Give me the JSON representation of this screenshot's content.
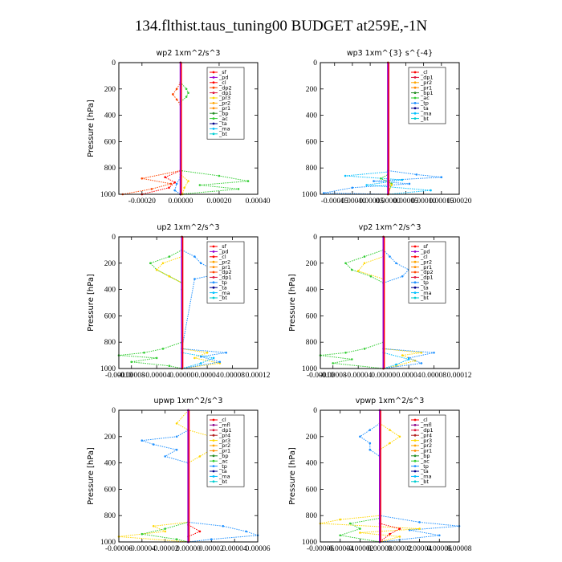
{
  "figure_title": "134.flthist.taus_tuning00  BUDGET at259E,-1N",
  "chart_data": [
    {
      "type": "line",
      "title": "wp2   1xm^2/s^3",
      "ylabel": "Pressure [hPa]",
      "ylim": [
        1000,
        0
      ],
      "yticks": [
        "0",
        "200",
        "400",
        "600",
        "800",
        "1000"
      ],
      "xlim": [
        -0.00032,
        0.0004
      ],
      "xticks": [
        {
          "v": -0.0002,
          "t": "-0.00020"
        },
        {
          "v": 0.0,
          "t": "0.00000"
        },
        {
          "v": 0.0002,
          "t": "0.00020"
        },
        {
          "v": 0.0004,
          "t": "0.00040"
        }
      ],
      "legend": [
        "_sf",
        "_pd",
        "_cl",
        "_dp2",
        "_dp1",
        "_pr3",
        "_pr2",
        "_pr1",
        "_bp",
        "_ac",
        "_ta",
        "_ma",
        "_bt"
      ],
      "series": [
        {
          "color": "#32cd32",
          "p": [
            0,
            150,
            200,
            230,
            260,
            300,
            820,
            860,
            900,
            930,
            960,
            1000
          ],
          "x": [
            0.0,
            0.0,
            3e-05,
            4e-05,
            3e-05,
            0.0,
            0.0,
            0.0002,
            0.00035,
            0.0001,
            0.0003,
            0.0
          ]
        },
        {
          "color": "#ff4500",
          "p": [
            0,
            150,
            200,
            240,
            280,
            320,
            820,
            880,
            920,
            960,
            1000
          ],
          "x": [
            0.0,
            0.0,
            -2e-05,
            -4e-05,
            -2e-05,
            0.0,
            0.0,
            -0.0002,
            -5e-05,
            -0.00015,
            -0.0003
          ]
        },
        {
          "color": "#ff0000",
          "p": [
            0,
            820,
            870,
            910,
            950,
            1000
          ],
          "x": [
            0.0,
            0.0,
            -8e-05,
            -3e-05,
            -6e-05,
            -0.0002
          ]
        },
        {
          "color": "#ffd700",
          "p": [
            0,
            850,
            900,
            950,
            1000
          ],
          "x": [
            0.0,
            0.0,
            4e-05,
            2e-05,
            1e-05
          ]
        },
        {
          "color": "#1e90ff",
          "p": [
            0,
            870,
            920,
            970,
            1000
          ],
          "x": [
            0.0,
            0.0,
            -2e-05,
            -3e-05,
            0.0
          ]
        },
        {
          "color": "#9400d3",
          "p": [
            0,
            1000
          ],
          "x": [
            0.0,
            0.0
          ]
        },
        {
          "color": "#8b0000",
          "p": [
            0,
            1000
          ],
          "x": [
            0.0,
            0.0
          ]
        }
      ]
    },
    {
      "type": "line",
      "title": "wp3   1xm^{3} s^{-4}",
      "ylabel": "",
      "ylim": [
        1000,
        0
      ],
      "yticks": [
        "0",
        "200",
        "400",
        "600",
        "800",
        "1000"
      ],
      "xlim": [
        -0.00019,
        0.0002
      ],
      "xticks": [
        {
          "v": -0.00015,
          "t": "-0.00015"
        },
        {
          "v": -0.0001,
          "t": "-0.00010"
        },
        {
          "v": -5e-05,
          "t": "-0.00005"
        },
        {
          "v": 0.0,
          "t": "0.00000"
        },
        {
          "v": 5e-05,
          "t": "0.00005"
        },
        {
          "v": 0.0001,
          "t": "0.00010"
        },
        {
          "v": 0.00015,
          "t": "0.00015"
        },
        {
          "v": 0.0002,
          "t": "0.00020"
        }
      ],
      "legend": [
        "_cl",
        "_dp1",
        "_pr2",
        "_pr1",
        "_bp1",
        "_ac",
        "_tp",
        "_ta",
        "_ma",
        "_bt"
      ],
      "series": [
        {
          "color": "#1e90ff",
          "p": [
            0,
            820,
            850,
            870,
            900,
            920,
            950,
            990,
            1000
          ],
          "x": [
            0.0,
            0.0,
            8e-05,
            0.00015,
            -4e-05,
            6e-05,
            -0.0001,
            -0.00018,
            0.0
          ]
        },
        {
          "color": "#00bfff",
          "p": [
            0,
            830,
            860,
            890,
            930,
            970,
            1000
          ],
          "x": [
            0.0,
            0.0,
            -0.00012,
            4e-05,
            -6e-05,
            0.00012,
            0.0
          ]
        },
        {
          "color": "#32cd32",
          "p": [
            0,
            850,
            880,
            920,
            1000
          ],
          "x": [
            0.0,
            0.0,
            -2e-05,
            1e-05,
            0.0
          ]
        },
        {
          "color": "#ffd700",
          "p": [
            0,
            880,
            930,
            1000
          ],
          "x": [
            0.0,
            0.0,
            1e-05,
            0.0
          ]
        },
        {
          "color": "#ff0000",
          "p": [
            0,
            1000
          ],
          "x": [
            0.0,
            0.0
          ]
        }
      ]
    },
    {
      "type": "line",
      "title": "up2   1xm^2/s^3",
      "ylabel": "Pressure [hPa]",
      "ylim": [
        1000,
        0
      ],
      "yticks": [
        "0",
        "200",
        "400",
        "600",
        "800",
        "1000"
      ],
      "xlim": [
        -0.0001,
        0.00012
      ],
      "xticks": [
        {
          "v": -0.0001,
          "t": "-0.00010"
        },
        {
          "v": -8e-05,
          "t": "-0.00008"
        },
        {
          "v": -4e-05,
          "t": "-0.00004"
        },
        {
          "v": 0.0,
          "t": "0.00000"
        },
        {
          "v": 4e-05,
          "t": "0.00004"
        },
        {
          "v": 8e-05,
          "t": "0.00008"
        },
        {
          "v": 0.00012,
          "t": "0.00012"
        }
      ],
      "legend": [
        "_sf",
        "_pd",
        "_cl",
        "_pr2",
        "_pr1",
        "_dp2",
        "_dp1",
        "_tp",
        "_ta",
        "_ma",
        "_bt"
      ],
      "series": [
        {
          "color": "#32cd32",
          "p": [
            0,
            100,
            150,
            200,
            250,
            300,
            350,
            400,
            800,
            850,
            880,
            900,
            920,
            950,
            980,
            1000
          ],
          "x": [
            0.0,
            0.0,
            -2e-05,
            -5e-05,
            -4e-05,
            -2e-05,
            0.0,
            0.0,
            0.0,
            -3e-05,
            -6e-05,
            -0.0001,
            -4e-05,
            -8e-05,
            -2e-05,
            0.0
          ]
        },
        {
          "color": "#ffd700",
          "p": [
            0,
            150,
            200,
            250,
            300,
            350,
            850,
            880,
            920,
            960,
            1000
          ],
          "x": [
            0.0,
            0.0,
            -3e-05,
            -4e-05,
            -2e-05,
            0.0,
            0.0,
            4e-05,
            2e-05,
            6e-05,
            0.0
          ]
        },
        {
          "color": "#1e90ff",
          "p": [
            0,
            100,
            150,
            200,
            250,
            280,
            320,
            850,
            880,
            910,
            950,
            1000
          ],
          "x": [
            0.0,
            0.0,
            2e-05,
            3e-05,
            5e-05,
            6e-05,
            2e-05,
            0.0,
            7e-05,
            3e-05,
            6e-05,
            0.0
          ]
        },
        {
          "color": "#00bfff",
          "p": [
            0,
            880,
            920,
            960,
            1000
          ],
          "x": [
            0.0,
            0.0,
            5e-05,
            3e-05,
            0.0
          ]
        },
        {
          "color": "#ff0000",
          "p": [
            0,
            1000
          ],
          "x": [
            0.0,
            0.0
          ]
        }
      ]
    },
    {
      "type": "line",
      "title": "vp2   1xm^2/s^3",
      "ylabel": "Pressure [hPa]",
      "ylim": [
        1000,
        0
      ],
      "yticks": [
        "0",
        "200",
        "400",
        "600",
        "800",
        "1000"
      ],
      "xlim": [
        -0.0001,
        0.00012
      ],
      "xticks": [
        {
          "v": -0.0001,
          "t": "-0.00010"
        },
        {
          "v": -8e-05,
          "t": "-0.00008"
        },
        {
          "v": -4e-05,
          "t": "-0.00004"
        },
        {
          "v": 0.0,
          "t": "0.00000"
        },
        {
          "v": 4e-05,
          "t": "0.00004"
        },
        {
          "v": 8e-05,
          "t": "0.00008"
        },
        {
          "v": 0.00012,
          "t": "0.00012"
        }
      ],
      "legend": [
        "_sf",
        "_pd",
        "_cl",
        "_pr2",
        "_pr1",
        "_dp2",
        "_dp1",
        "_tp",
        "_ta",
        "_ma",
        "_bt"
      ],
      "series": [
        {
          "color": "#32cd32",
          "p": [
            0,
            100,
            150,
            200,
            250,
            300,
            350,
            800,
            850,
            880,
            900,
            930,
            960,
            1000
          ],
          "x": [
            0.0,
            0.0,
            -3e-05,
            -6e-05,
            -5e-05,
            -2e-05,
            0.0,
            0.0,
            -3e-05,
            -6e-05,
            -0.0001,
            -5e-05,
            -8e-05,
            0.0
          ]
        },
        {
          "color": "#ffd700",
          "p": [
            0,
            150,
            200,
            260,
            320,
            850,
            880,
            900,
            940,
            980,
            1000
          ],
          "x": [
            0.0,
            0.0,
            -3e-05,
            -4e-05,
            0.0,
            0.0,
            6e-05,
            3e-05,
            5e-05,
            2e-05,
            0.0
          ]
        },
        {
          "color": "#1e90ff",
          "p": [
            0,
            100,
            150,
            200,
            250,
            300,
            350,
            850,
            880,
            920,
            960,
            1000
          ],
          "x": [
            0.0,
            0.0,
            1e-05,
            2e-05,
            4e-05,
            3e-05,
            0.0,
            0.0,
            8e-05,
            4e-05,
            6e-05,
            0.0
          ]
        },
        {
          "color": "#00bfff",
          "p": [
            0,
            880,
            930,
            970,
            1000
          ],
          "x": [
            0.0,
            0.0,
            4e-05,
            2e-05,
            0.0
          ]
        },
        {
          "color": "#ff0000",
          "p": [
            0,
            1000
          ],
          "x": [
            0.0,
            0.0
          ]
        }
      ]
    },
    {
      "type": "line",
      "title": "upwp   1xm^2/s^3",
      "ylabel": "Pressure [hPa]",
      "ylim": [
        1000,
        0
      ],
      "yticks": [
        "0",
        "200",
        "400",
        "600",
        "800",
        "1000"
      ],
      "xlim": [
        -6e-05,
        6e-05
      ],
      "xticks": [
        {
          "v": -6e-05,
          "t": "-0.00006"
        },
        {
          "v": -4e-05,
          "t": "-0.00004"
        },
        {
          "v": -2e-05,
          "t": "-0.00002"
        },
        {
          "v": 0.0,
          "t": "0.00000"
        },
        {
          "v": 2e-05,
          "t": "0.00002"
        },
        {
          "v": 4e-05,
          "t": "0.00004"
        },
        {
          "v": 6e-05,
          "t": "0.00006"
        }
      ],
      "legend": [
        "_cl",
        "_mfl",
        "_dp1",
        "_pr4",
        "_pr3",
        "_pr2",
        "_pr1",
        "_bp",
        "_ac",
        "_tp",
        "_ta",
        "_ma",
        "_bt"
      ],
      "series": [
        {
          "color": "#ffd700",
          "p": [
            0,
            100,
            150,
            200,
            250,
            300,
            350,
            400,
            850,
            880,
            920,
            960,
            1000
          ],
          "x": [
            0.0,
            -1e-05,
            0.0,
            2e-05,
            3e-05,
            2e-05,
            1e-05,
            0.0,
            0.0,
            -3e-05,
            -2e-05,
            -6e-05,
            0.0
          ]
        },
        {
          "color": "#1e90ff",
          "p": [
            0,
            150,
            200,
            230,
            260,
            300,
            350,
            400,
            850,
            880,
            920,
            950,
            980,
            1000
          ],
          "x": [
            0.0,
            0.0,
            -1e-05,
            -4e-05,
            -3e-05,
            -1e-05,
            -2e-05,
            0.0,
            0.0,
            3e-05,
            5e-05,
            6e-05,
            2e-05,
            0.0
          ]
        },
        {
          "color": "#32cd32",
          "p": [
            0,
            850,
            900,
            940,
            980,
            1000
          ],
          "x": [
            0.0,
            0.0,
            -2e-05,
            -4e-05,
            -1e-05,
            0.0
          ]
        },
        {
          "color": "#ff0000",
          "p": [
            0,
            870,
            920,
            960,
            1000
          ],
          "x": [
            0.0,
            0.0,
            1e-05,
            0.0,
            0.0
          ]
        },
        {
          "color": "#9400d3",
          "p": [
            0,
            1000
          ],
          "x": [
            0.0,
            0.0
          ]
        }
      ]
    },
    {
      "type": "line",
      "title": "vpwp   1xm^2/s^3",
      "ylabel": "Pressure [hPa]",
      "ylim": [
        1000,
        0
      ],
      "yticks": [
        "0",
        "200",
        "400",
        "600",
        "800",
        "1000"
      ],
      "xlim": [
        -6e-05,
        8e-05
      ],
      "xticks": [
        {
          "v": -6e-05,
          "t": "-0.00006"
        },
        {
          "v": -4e-05,
          "t": "-0.00004"
        },
        {
          "v": -2e-05,
          "t": "-0.00002"
        },
        {
          "v": 0.0,
          "t": "0.00000"
        },
        {
          "v": 2e-05,
          "t": "0.00002"
        },
        {
          "v": 4e-05,
          "t": "0.00004"
        },
        {
          "v": 6e-05,
          "t": "0.00006"
        },
        {
          "v": 8e-05,
          "t": "0.00008"
        }
      ],
      "legend": [
        "_cl",
        "_mfl",
        "_dp1",
        "_pr4",
        "_pr3",
        "_pr2",
        "_pr1",
        "_bp",
        "_ac",
        "_tp",
        "_ta",
        "_ma",
        "_bt"
      ],
      "series": [
        {
          "color": "#1e90ff",
          "p": [
            0,
            100,
            150,
            200,
            250,
            300,
            350,
            800,
            850,
            880,
            910,
            950,
            1000
          ],
          "x": [
            0.0,
            0.0,
            -1e-05,
            -2e-05,
            -1e-05,
            -1e-05,
            0.0,
            0.0,
            4e-05,
            8e-05,
            3e-05,
            6e-05,
            0.0
          ]
        },
        {
          "color": "#ffd700",
          "p": [
            0,
            100,
            150,
            200,
            250,
            300,
            350,
            800,
            830,
            860,
            900,
            930,
            960,
            1000
          ],
          "x": [
            0.0,
            0.0,
            1e-05,
            2e-05,
            1e-05,
            0.0,
            0.0,
            0.0,
            -4e-05,
            -6e-05,
            4e-05,
            -2e-05,
            2e-05,
            0.0
          ]
        },
        {
          "color": "#32cd32",
          "p": [
            0,
            820,
            860,
            900,
            950,
            1000
          ],
          "x": [
            0.0,
            0.0,
            -3e-05,
            -2e-05,
            -4e-05,
            0.0
          ]
        },
        {
          "color": "#ff0000",
          "p": [
            0,
            860,
            900,
            940,
            1000
          ],
          "x": [
            0.0,
            0.0,
            2e-05,
            1e-05,
            0.0
          ]
        },
        {
          "color": "#9400d3",
          "p": [
            0,
            1000
          ],
          "x": [
            0.0,
            0.0
          ]
        }
      ]
    }
  ],
  "legend_colors": {
    "_sf": "#ff0000",
    "_pd": "#9400d3",
    "_cl": "#ff0000",
    "_dp2": "#ff4500",
    "_dp1": "#dc143c",
    "_pr4": "#b22222",
    "_pr3": "#ffd700",
    "_pr2": "#ffa500",
    "_pr1": "#ff8c00",
    "_bp": "#228b22",
    "_bp1": "#228b22",
    "_ac": "#32cd32",
    "_tp": "#1e90ff",
    "_ta": "#00008b",
    "_ma": "#00bfff",
    "_bt": "#00ced1",
    "_mfl": "#8b008b"
  }
}
